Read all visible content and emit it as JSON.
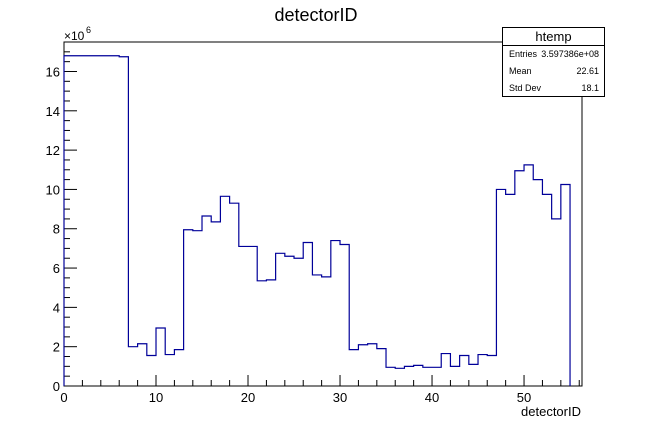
{
  "chart_data": {
    "type": "bar",
    "title": "detectorID",
    "xlabel": "detectorID",
    "ylabel": "",
    "y_exponent_label": "×10",
    "y_exponent_power": "6",
    "xlim": [
      0,
      56.3
    ],
    "ylim": [
      0,
      17.5
    ],
    "x_ticks": [
      "0",
      "10",
      "20",
      "30",
      "40",
      "50"
    ],
    "y_ticks": [
      "0",
      "2",
      "4",
      "6",
      "8",
      "10",
      "12",
      "14",
      "16"
    ],
    "bin_width": 1,
    "bin_start": 0,
    "values": [
      16.8,
      16.8,
      16.8,
      16.8,
      16.8,
      16.8,
      16.75,
      2.0,
      2.15,
      1.55,
      2.95,
      1.6,
      1.85,
      7.95,
      7.9,
      8.65,
      8.35,
      9.65,
      9.3,
      7.1,
      7.1,
      5.35,
      5.4,
      6.75,
      6.6,
      6.5,
      7.3,
      5.65,
      5.55,
      7.4,
      7.2,
      1.85,
      2.1,
      2.15,
      1.9,
      0.95,
      0.9,
      1.0,
      1.05,
      0.95,
      0.95,
      1.65,
      1.0,
      1.55,
      1.1,
      1.6,
      1.55,
      10.0,
      9.75,
      10.95,
      11.25,
      10.5,
      9.75,
      8.5,
      10.25
    ],
    "line_color": "#000099",
    "grid": false,
    "legend": "stats box top-right"
  },
  "stats": {
    "title": "htemp",
    "rows": [
      {
        "label": "Entries",
        "value": "3.597386e+08"
      },
      {
        "label": "Mean",
        "value": "22.61"
      },
      {
        "label": "Std Dev",
        "value": "18.1"
      }
    ]
  }
}
